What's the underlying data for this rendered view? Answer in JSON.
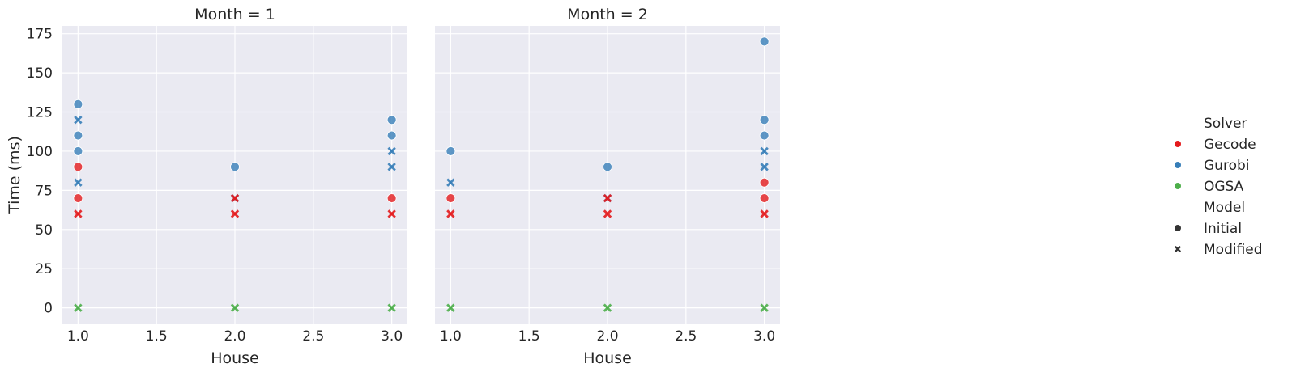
{
  "chart_data": {
    "type": "scatter",
    "facet_variable": "Month",
    "facet_title_template": "Month = {v}",
    "facets": [
      {
        "title": "Month = 1",
        "points": [
          {
            "house": 1.0,
            "time": 130,
            "solver": "Gurobi",
            "model": "Initial"
          },
          {
            "house": 1.0,
            "time": 110,
            "solver": "Gurobi",
            "model": "Initial"
          },
          {
            "house": 1.0,
            "time": 100,
            "solver": "Gurobi",
            "model": "Initial"
          },
          {
            "house": 1.0,
            "time": 90,
            "solver": "Gecode",
            "model": "Initial"
          },
          {
            "house": 1.0,
            "time": 70,
            "solver": "Gecode",
            "model": "Initial"
          },
          {
            "house": 1.0,
            "time": 120,
            "solver": "Gurobi",
            "model": "Modified"
          },
          {
            "house": 1.0,
            "time": 80,
            "solver": "Gurobi",
            "model": "Modified"
          },
          {
            "house": 1.0,
            "time": 60,
            "solver": "Gecode",
            "model": "Modified"
          },
          {
            "house": 1.0,
            "time": 0,
            "solver": "OGSA",
            "model": "Modified"
          },
          {
            "house": 2.0,
            "time": 90,
            "solver": "Gurobi",
            "model": "Initial"
          },
          {
            "house": 2.0,
            "time": 70,
            "solver": "Gurobi",
            "model": "Modified"
          },
          {
            "house": 2.0,
            "time": 70,
            "solver": "Gecode",
            "model": "Modified"
          },
          {
            "house": 2.0,
            "time": 60,
            "solver": "Gecode",
            "model": "Modified"
          },
          {
            "house": 2.0,
            "time": 0,
            "solver": "OGSA",
            "model": "Modified"
          },
          {
            "house": 3.0,
            "time": 120,
            "solver": "Gurobi",
            "model": "Initial"
          },
          {
            "house": 3.0,
            "time": 110,
            "solver": "Gurobi",
            "model": "Initial"
          },
          {
            "house": 3.0,
            "time": 70,
            "solver": "Gecode",
            "model": "Initial"
          },
          {
            "house": 3.0,
            "time": 100,
            "solver": "Gurobi",
            "model": "Modified"
          },
          {
            "house": 3.0,
            "time": 90,
            "solver": "Gurobi",
            "model": "Modified"
          },
          {
            "house": 3.0,
            "time": 60,
            "solver": "Gecode",
            "model": "Modified"
          },
          {
            "house": 3.0,
            "time": 0,
            "solver": "OGSA",
            "model": "Modified"
          }
        ]
      },
      {
        "title": "Month = 2",
        "points": [
          {
            "house": 1.0,
            "time": 100,
            "solver": "Gurobi",
            "model": "Initial"
          },
          {
            "house": 1.0,
            "time": 70,
            "solver": "Gecode",
            "model": "Initial"
          },
          {
            "house": 1.0,
            "time": 80,
            "solver": "Gurobi",
            "model": "Modified"
          },
          {
            "house": 1.0,
            "time": 60,
            "solver": "Gecode",
            "model": "Modified"
          },
          {
            "house": 1.0,
            "time": 0,
            "solver": "OGSA",
            "model": "Modified"
          },
          {
            "house": 2.0,
            "time": 90,
            "solver": "Gurobi",
            "model": "Initial"
          },
          {
            "house": 2.0,
            "time": 70,
            "solver": "Gurobi",
            "model": "Modified"
          },
          {
            "house": 2.0,
            "time": 70,
            "solver": "Gecode",
            "model": "Modified"
          },
          {
            "house": 2.0,
            "time": 60,
            "solver": "Gecode",
            "model": "Modified"
          },
          {
            "house": 2.0,
            "time": 0,
            "solver": "OGSA",
            "model": "Modified"
          },
          {
            "house": 3.0,
            "time": 170,
            "solver": "Gurobi",
            "model": "Initial"
          },
          {
            "house": 3.0,
            "time": 120,
            "solver": "Gurobi",
            "model": "Initial"
          },
          {
            "house": 3.0,
            "time": 110,
            "solver": "Gurobi",
            "model": "Initial"
          },
          {
            "house": 3.0,
            "time": 80,
            "solver": "Gecode",
            "model": "Initial"
          },
          {
            "house": 3.0,
            "time": 70,
            "solver": "Gecode",
            "model": "Initial"
          },
          {
            "house": 3.0,
            "time": 100,
            "solver": "Gurobi",
            "model": "Modified"
          },
          {
            "house": 3.0,
            "time": 90,
            "solver": "Gurobi",
            "model": "Modified"
          },
          {
            "house": 3.0,
            "time": 60,
            "solver": "Gecode",
            "model": "Modified"
          },
          {
            "house": 3.0,
            "time": 0,
            "solver": "OGSA",
            "model": "Modified"
          }
        ]
      }
    ],
    "xlabel": "House",
    "ylabel": "Time (ms)",
    "xlim": [
      0.9,
      3.1
    ],
    "ylim": [
      -10,
      180
    ],
    "xticks": [
      1.0,
      1.5,
      2.0,
      2.5,
      3.0
    ],
    "xtick_labels": [
      "1.0",
      "1.5",
      "2.0",
      "2.5",
      "3.0"
    ],
    "yticks": [
      0,
      25,
      50,
      75,
      100,
      125,
      150,
      175
    ],
    "ytick_labels": [
      "0",
      "25",
      "50",
      "75",
      "100",
      "125",
      "150",
      "175"
    ],
    "grid": true,
    "legend": {
      "placement": "right",
      "hue_title": "Solver",
      "hue_entries": [
        "Gecode",
        "Gurobi",
        "OGSA"
      ],
      "style_title": "Model",
      "style_entries": [
        "Initial",
        "Modified"
      ]
    },
    "colors": {
      "Gecode": "#e41a1c",
      "Gurobi": "#377eb8",
      "OGSA": "#4daf4a",
      "style_marker": "#333333",
      "plot_background": "#eaeaf2",
      "grid": "#ffffff"
    },
    "markers": {
      "Initial": "circle",
      "Modified": "x"
    }
  }
}
